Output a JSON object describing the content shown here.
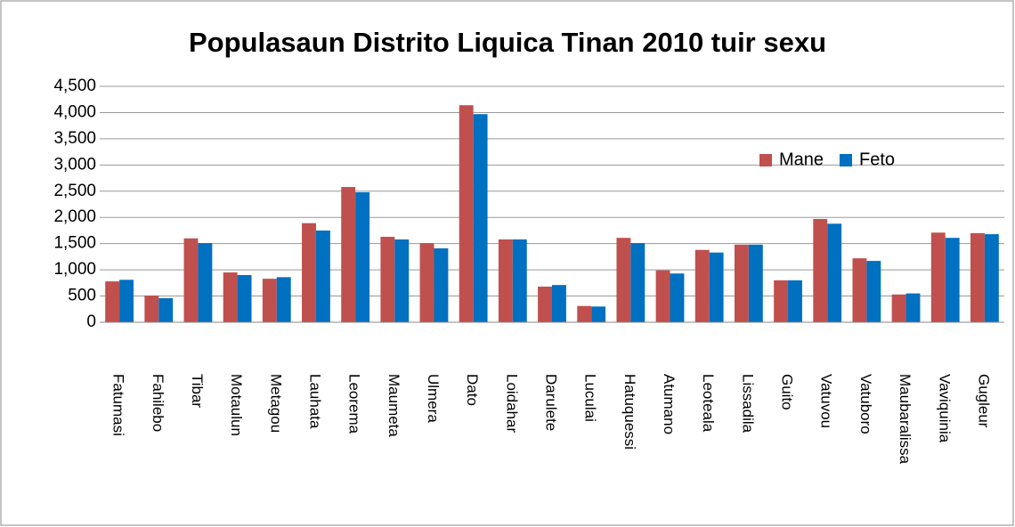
{
  "chart_data": {
    "type": "bar",
    "title": "Populasaun Distrito Liquica Tinan 2010  tuir sexu",
    "categories": [
      "Fatumasi",
      "Fahilebo",
      "Tibar",
      "Motaulun",
      "Metagou",
      "Lauhata",
      "Leorema",
      "Maumeta",
      "Ulmera",
      "Dato",
      "Loidahar",
      "Darulete",
      "Luculai",
      "Hatuquessi",
      "Atumano",
      "Leoteala",
      "Lissadila",
      "Guito",
      "Vatuvou",
      "Vatuboro",
      "Maubaralissa",
      "Vaviquinia",
      "Gugleur"
    ],
    "series": [
      {
        "name": "Mane",
        "color": "#c0504d",
        "values": [
          780,
          510,
          1600,
          950,
          830,
          1890,
          2580,
          1630,
          1510,
          4140,
          1580,
          680,
          310,
          1610,
          990,
          1380,
          1480,
          800,
          1970,
          1220,
          530,
          1710,
          1700
        ]
      },
      {
        "name": "Feto",
        "color": "#0070c0",
        "values": [
          810,
          460,
          1510,
          900,
          860,
          1750,
          2480,
          1580,
          1410,
          3970,
          1580,
          710,
          300,
          1510,
          930,
          1330,
          1480,
          800,
          1880,
          1170,
          550,
          1610,
          1680
        ]
      }
    ],
    "ylim": [
      0,
      4500
    ],
    "yticks": [
      0,
      500,
      {
        "value": 1000,
        "label": "1,000"
      },
      {
        "value": 1500,
        "label": "1,500"
      },
      {
        "value": 2000,
        "label": "2,000"
      },
      {
        "value": 2500,
        "label": "2,500"
      },
      {
        "value": 3000,
        "label": "3,000"
      },
      {
        "value": 3500,
        "label": "3,500"
      },
      {
        "value": 4000,
        "label": "4,000"
      },
      {
        "value": 4500,
        "label": "4,500"
      }
    ],
    "grid": true,
    "legend": "upper right"
  }
}
